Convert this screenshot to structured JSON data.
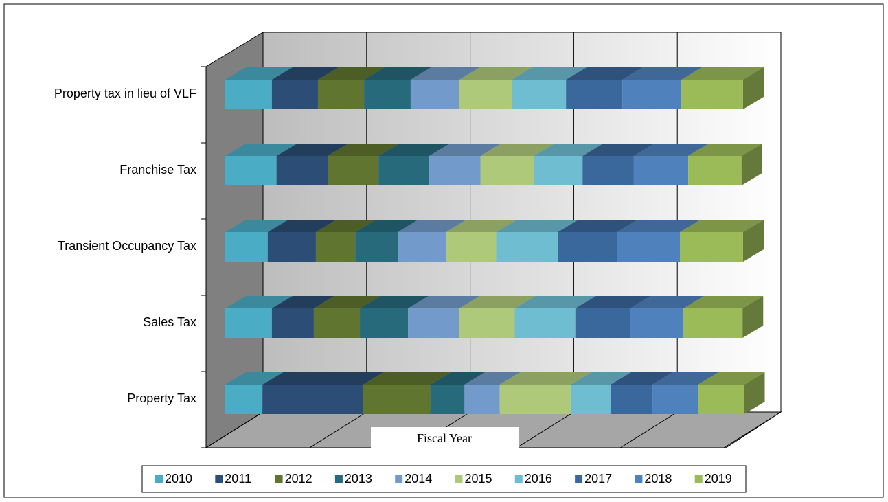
{
  "chart_data": {
    "type": "bar",
    "orientation": "horizontal",
    "stacked": "percent",
    "three_d": true,
    "x_label": "Fiscal Year",
    "categories": [
      "Property Tax",
      "Sales Tax",
      "Transient Occupancy Tax",
      "Franchise Tax",
      "Property tax in lieu of VLF"
    ],
    "xlim": [
      0,
      100
    ],
    "xticks": [
      0,
      20,
      40,
      60,
      80,
      100
    ],
    "grid": true,
    "legend": "bottom",
    "series": [
      {
        "name": "2010",
        "color": "#4bacc6",
        "values": [
          7.2,
          9.0,
          8.2,
          9.9,
          9.0
        ]
      },
      {
        "name": "2011",
        "color": "#2c4d75",
        "values": [
          19.4,
          8.1,
          9.3,
          9.9,
          8.9
        ]
      },
      {
        "name": "2012",
        "color": "#5f7530",
        "values": [
          13.0,
          8.9,
          7.6,
          9.8,
          8.9
        ]
      },
      {
        "name": "2013",
        "color": "#276a7c",
        "values": [
          6.6,
          9.3,
          8.2,
          9.8,
          9.0
        ]
      },
      {
        "name": "2014",
        "color": "#729aca",
        "values": [
          6.8,
          9.9,
          9.3,
          9.9,
          9.4
        ]
      },
      {
        "name": "2015",
        "color": "#afc97a",
        "values": [
          13.7,
          10.7,
          9.7,
          10.3,
          10.1
        ]
      },
      {
        "name": "2016",
        "color": "#6fbdd1",
        "values": [
          7.7,
          11.7,
          11.9,
          9.4,
          10.5
        ]
      },
      {
        "name": "2017",
        "color": "#3a679c",
        "values": [
          8.1,
          10.6,
          11.5,
          9.9,
          10.9
        ]
      },
      {
        "name": "2018",
        "color": "#4f81bd",
        "values": [
          8.8,
          10.3,
          12.1,
          10.5,
          11.4
        ]
      },
      {
        "name": "2019",
        "color": "#9bbb59",
        "values": [
          8.9,
          11.4,
          12.2,
          10.3,
          11.9
        ]
      }
    ]
  }
}
